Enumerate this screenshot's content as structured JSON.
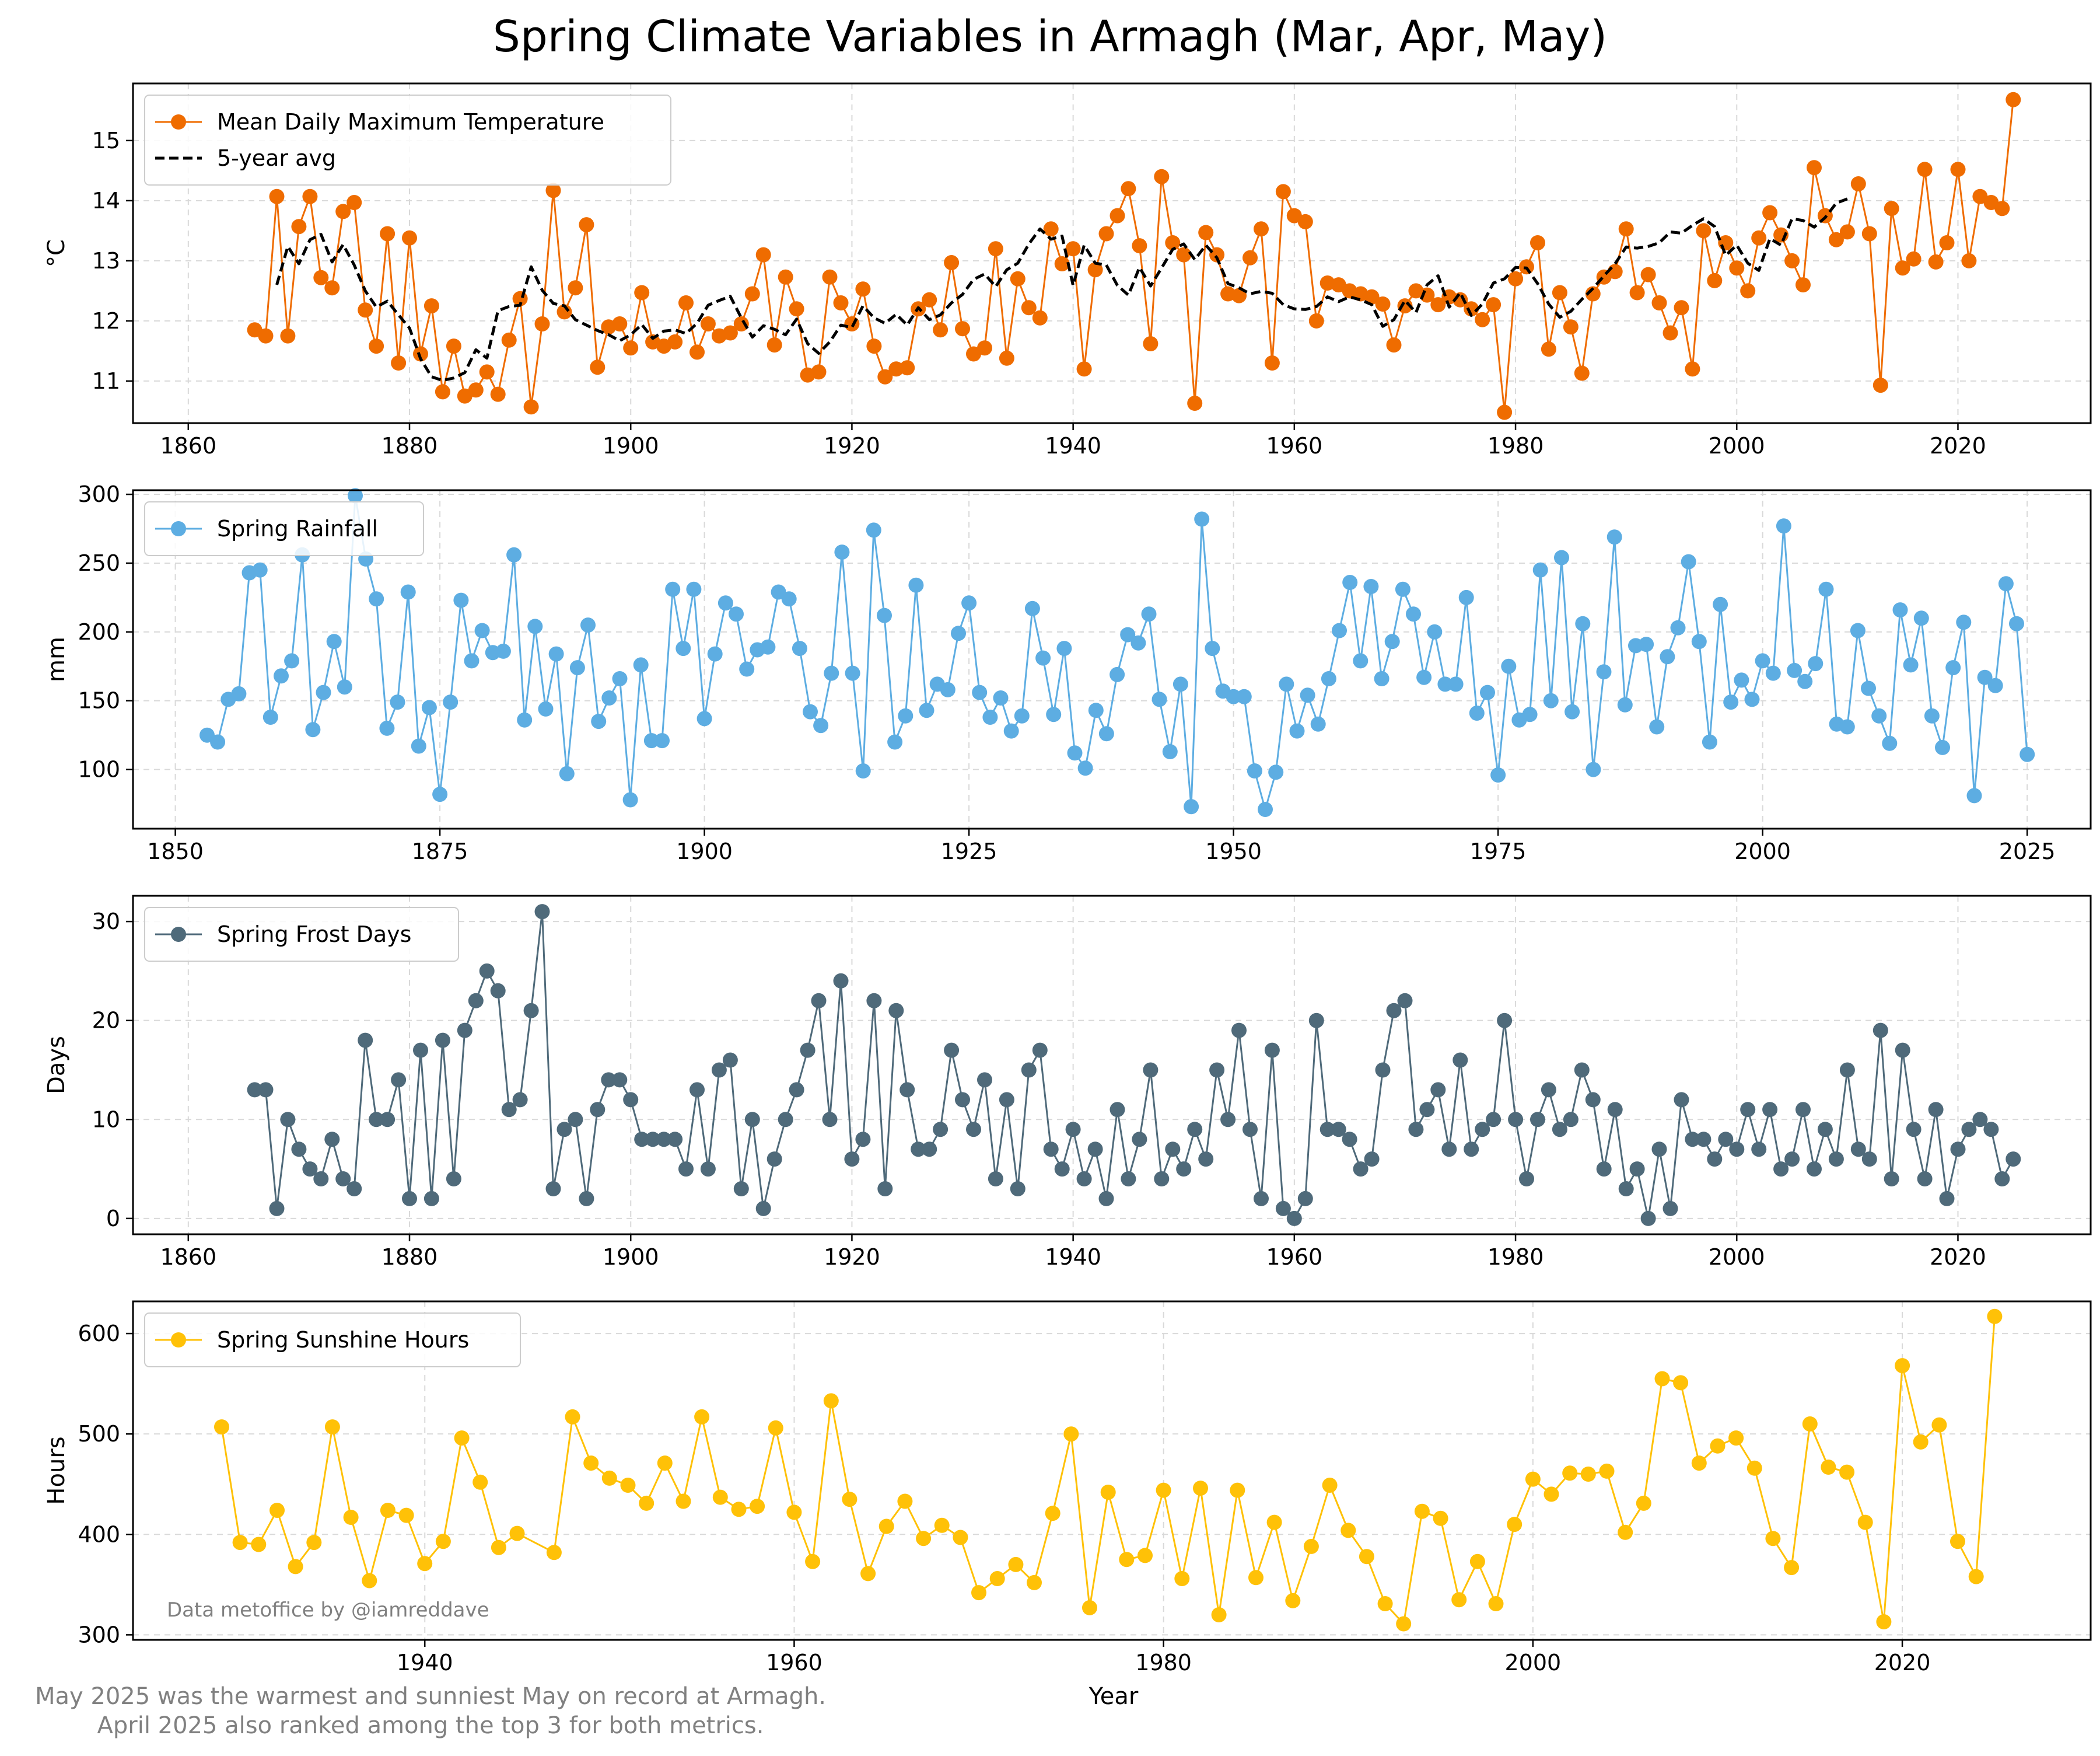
{
  "title": "Spring Climate Variables in Armagh (Mar, Apr, May)",
  "footnote_line1": "May 2025 was the warmest and sunniest May on record at Armagh.",
  "footnote_line2": "April 2025 also ranked among the top 3 for both metrics.",
  "credit": "Data metoffice by @iamreddave",
  "colors": {
    "temp": "#EF6C00",
    "avg": "#000000",
    "rain": "#5DADE2",
    "frost": "#4F6A7A",
    "sun": "#FFC107",
    "grid": "#d9d9d9"
  },
  "chart_data": [
    {
      "type": "line",
      "ylabel": "°C",
      "xlabel": "",
      "xlim": [
        1855,
        2032
      ],
      "ylim": [
        10.3,
        15.95
      ],
      "xticks": [
        1860,
        1880,
        1900,
        1920,
        1940,
        1960,
        1980,
        2000,
        2020
      ],
      "yticks": [
        11,
        12,
        13,
        14,
        15
      ],
      "grid": true,
      "legend_position": "upper-left",
      "x_start": 1866,
      "series": [
        {
          "name": "Mean Daily Maximum Temperature",
          "style": "line-markers",
          "color": "#EF6C00",
          "values": [
            11.85,
            11.75,
            14.07,
            11.75,
            13.57,
            14.07,
            12.72,
            12.55,
            13.82,
            13.97,
            12.18,
            11.58,
            13.45,
            11.3,
            13.38,
            11.45,
            12.25,
            10.82,
            11.58,
            10.75,
            10.85,
            11.15,
            10.78,
            11.68,
            12.37,
            10.57,
            11.95,
            14.17,
            12.15,
            12.55,
            13.6,
            11.23,
            11.9,
            11.95,
            11.55,
            12.47,
            11.65,
            11.58,
            11.65,
            12.3,
            11.48,
            11.95,
            11.75,
            11.8,
            11.95,
            12.45,
            13.1,
            11.6,
            12.73,
            12.2,
            11.1,
            11.15,
            12.73,
            12.3,
            11.95,
            12.53,
            11.58,
            11.07,
            11.2,
            11.22,
            12.2,
            12.35,
            11.85,
            12.97,
            11.87,
            11.45,
            11.55,
            13.2,
            11.38,
            12.7,
            12.22,
            12.05,
            13.53,
            12.95,
            13.2,
            11.2,
            12.85,
            13.45,
            13.75,
            14.2,
            13.25,
            11.62,
            14.4,
            13.3,
            13.1,
            10.63,
            13.47,
            13.1,
            12.45,
            12.42,
            13.05,
            13.53,
            11.3,
            14.15,
            13.75,
            13.65,
            12.0,
            12.63,
            12.6,
            12.5,
            12.45,
            12.4,
            12.28,
            11.6,
            12.25,
            12.5,
            12.43,
            12.27,
            12.4,
            12.35,
            12.2,
            12.02,
            12.27,
            10.48,
            12.7,
            12.9,
            13.3,
            11.53,
            12.47,
            11.9,
            11.13,
            12.45,
            12.73,
            12.82,
            13.53,
            12.47,
            12.77,
            12.3,
            11.8,
            12.22,
            11.2,
            13.5,
            12.67,
            13.3,
            12.88,
            12.5,
            13.38,
            13.8,
            13.43,
            13.0,
            12.6,
            14.55,
            13.75,
            13.35,
            13.48,
            14.28,
            13.45,
            10.93,
            13.87,
            12.88,
            13.03,
            14.52,
            12.98,
            13.3,
            14.52,
            13.0,
            14.07,
            13.97,
            13.87,
            15.68
          ]
        },
        {
          "name": "5-year avg",
          "style": "dashed",
          "color": "#000000",
          "x_start": 1868,
          "values": [
            12.6,
            13.24,
            12.95,
            13.35,
            13.44,
            12.98,
            13.27,
            12.93,
            12.5,
            12.23,
            12.33,
            12.1,
            11.88,
            11.37,
            11.07,
            11.01,
            11.05,
            11.14,
            11.52,
            11.38,
            12.17,
            12.24,
            12.26,
            12.9,
            12.51,
            12.29,
            12.25,
            12.02,
            11.93,
            11.84,
            11.77,
            11.67,
            11.77,
            11.94,
            11.71,
            11.83,
            11.85,
            11.79,
            11.96,
            12.26,
            12.34,
            12.41,
            12.05,
            11.73,
            11.92,
            11.86,
            11.77,
            12.03,
            11.62,
            11.46,
            11.65,
            11.93,
            11.89,
            12.25,
            12.05,
            11.96,
            12.11,
            11.93,
            12.22,
            12.02,
            12.1,
            12.3,
            12.44,
            12.69,
            12.78,
            12.57,
            12.85,
            12.96,
            13.28,
            13.53,
            13.36,
            13.41,
            12.59,
            13.26,
            12.96,
            12.93,
            12.59,
            12.43,
            12.89,
            12.58,
            12.88,
            13.19,
            13.28,
            13.02,
            13.26,
            13.05,
            12.62,
            12.55,
            12.45,
            12.49,
            12.46,
            12.27,
            12.2,
            12.19,
            12.24,
            12.4,
            12.32,
            12.4,
            12.35,
            12.27,
            11.91,
            12.02,
            12.34,
            12.14,
            12.6,
            12.75,
            12.23,
            12.47,
            12.09,
            12.28,
            12.63,
            12.7,
            12.89,
            12.88,
            12.62,
            12.28,
            12.06,
            12.16,
            12.36,
            12.54,
            12.75,
            12.95,
            13.23,
            13.21,
            13.24,
            13.3,
            13.48,
            13.46,
            13.59,
            13.7,
            13.57,
            13.09,
            13.26,
            12.96,
            12.84,
            13.37,
            13.26,
            13.7,
            13.67,
            13.56,
            13.72,
            13.96,
            14.03
          ]
        }
      ]
    },
    {
      "type": "line",
      "ylabel": "mm",
      "xlabel": "",
      "xlim": [
        1846,
        2031
      ],
      "ylim": [
        57,
        303
      ],
      "xticks": [
        1850,
        1875,
        1900,
        1925,
        1950,
        1975,
        2000,
        2025
      ],
      "yticks": [
        100,
        150,
        200,
        250,
        300
      ],
      "grid": true,
      "legend_position": "upper-left",
      "x_start": 1853,
      "series": [
        {
          "name": "Spring Rainfall",
          "style": "line-markers",
          "color": "#5DADE2",
          "values": [
            125,
            120,
            151,
            155,
            243,
            245,
            138,
            168,
            179,
            256,
            129,
            156,
            193,
            160,
            299,
            253,
            224,
            130,
            149,
            229,
            117,
            145,
            82,
            149,
            223,
            179,
            201,
            185,
            186,
            256,
            136,
            204,
            144,
            184,
            97,
            174,
            205,
            135,
            152,
            166,
            78,
            176,
            121,
            121,
            231,
            188,
            231,
            137,
            184,
            221,
            213,
            173,
            187,
            189,
            229,
            224,
            188,
            142,
            132,
            170,
            258,
            170,
            99,
            274,
            212,
            120,
            139,
            234,
            143,
            162,
            158,
            199,
            221,
            156,
            138,
            152,
            128,
            139,
            217,
            181,
            140,
            188,
            112,
            101,
            143,
            126,
            169,
            198,
            192,
            213,
            151,
            113,
            162,
            73,
            282,
            188,
            157,
            153,
            153,
            99,
            71,
            98,
            162,
            128,
            154,
            133,
            166,
            201,
            236,
            179,
            233,
            166,
            193,
            231,
            213,
            167,
            200,
            162,
            162,
            225,
            141,
            156,
            96,
            175,
            136,
            140,
            245,
            150,
            254,
            142,
            206,
            100,
            171,
            269,
            147,
            190,
            191,
            131,
            182,
            203,
            251,
            193,
            120,
            220,
            149,
            165,
            151,
            179,
            170,
            277,
            172,
            164,
            177,
            231,
            133,
            131,
            201,
            159,
            139,
            119,
            216,
            176,
            210,
            139,
            116,
            174,
            207,
            81,
            167,
            161,
            235,
            206,
            111
          ]
        }
      ]
    },
    {
      "type": "line",
      "ylabel": "Days",
      "xlabel": "",
      "xlim": [
        1855,
        2032
      ],
      "ylim": [
        -1.6,
        32.6
      ],
      "xticks": [
        1860,
        1880,
        1900,
        1920,
        1940,
        1960,
        1980,
        2000,
        2020
      ],
      "yticks": [
        0,
        10,
        20,
        30
      ],
      "grid": true,
      "legend_position": "upper-left",
      "x_start": 1866,
      "series": [
        {
          "name": "Spring Frost Days",
          "style": "line-markers",
          "color": "#4F6A7A",
          "values": [
            13,
            13,
            1,
            10,
            7,
            5,
            4,
            8,
            4,
            3,
            18,
            10,
            10,
            14,
            2,
            17,
            2,
            18,
            4,
            19,
            22,
            25,
            23,
            11,
            12,
            21,
            31,
            3,
            9,
            10,
            2,
            11,
            14,
            14,
            12,
            8,
            8,
            8,
            8,
            5,
            13,
            5,
            15,
            16,
            3,
            10,
            1,
            6,
            10,
            13,
            17,
            22,
            10,
            24,
            6,
            8,
            22,
            3,
            21,
            13,
            7,
            7,
            9,
            17,
            12,
            9,
            14,
            4,
            12,
            3,
            15,
            17,
            7,
            5,
            9,
            4,
            7,
            2,
            11,
            4,
            8,
            15,
            4,
            7,
            5,
            9,
            6,
            15,
            10,
            19,
            9,
            2,
            17,
            1,
            0,
            2,
            20,
            9,
            9,
            8,
            5,
            6,
            15,
            21,
            22,
            9,
            11,
            13,
            7,
            16,
            7,
            9,
            10,
            20,
            10,
            4,
            10,
            13,
            9,
            10,
            15,
            12,
            5,
            11,
            3,
            5,
            0,
            7,
            1,
            12,
            8,
            8,
            6,
            8,
            7,
            11,
            7,
            11,
            5,
            6,
            11,
            5,
            9,
            6,
            15,
            7,
            6,
            19,
            4,
            17,
            9,
            4,
            11,
            2,
            7,
            9,
            10,
            9,
            4,
            6
          ]
        }
      ]
    },
    {
      "type": "line",
      "ylabel": "Hours",
      "xlabel": "Year",
      "xlim": [
        1924.2,
        2030.2
      ],
      "ylim": [
        295,
        632
      ],
      "xticks": [
        1940,
        1960,
        1980,
        2000,
        2020
      ],
      "yticks": [
        300,
        400,
        500,
        600
      ],
      "grid": true,
      "legend_position": "upper-left",
      "x_start": 1929,
      "series": [
        {
          "name": "Spring Sunshine Hours",
          "style": "line-markers",
          "color": "#FFC107",
          "values": [
            507,
            392,
            390,
            424,
            368,
            392,
            507,
            417,
            354,
            424,
            419,
            371,
            393,
            496,
            452,
            387,
            401,
            null,
            382,
            517,
            471,
            456,
            449,
            431,
            471,
            433,
            517,
            437,
            425,
            428,
            506,
            422,
            373,
            533,
            435,
            361,
            408,
            433,
            396,
            409,
            397,
            342,
            356,
            370,
            352,
            421,
            500,
            327,
            442,
            375,
            379,
            444,
            356,
            446,
            320,
            444,
            357,
            412,
            334,
            388,
            449,
            404,
            378,
            331,
            311,
            423,
            416,
            335,
            373,
            331,
            410,
            455,
            440,
            461,
            460,
            463,
            402,
            431,
            555,
            551,
            471,
            488,
            496,
            466,
            396,
            367,
            510,
            467,
            462,
            412,
            313,
            568,
            492,
            509,
            393,
            358,
            617
          ]
        }
      ]
    }
  ]
}
